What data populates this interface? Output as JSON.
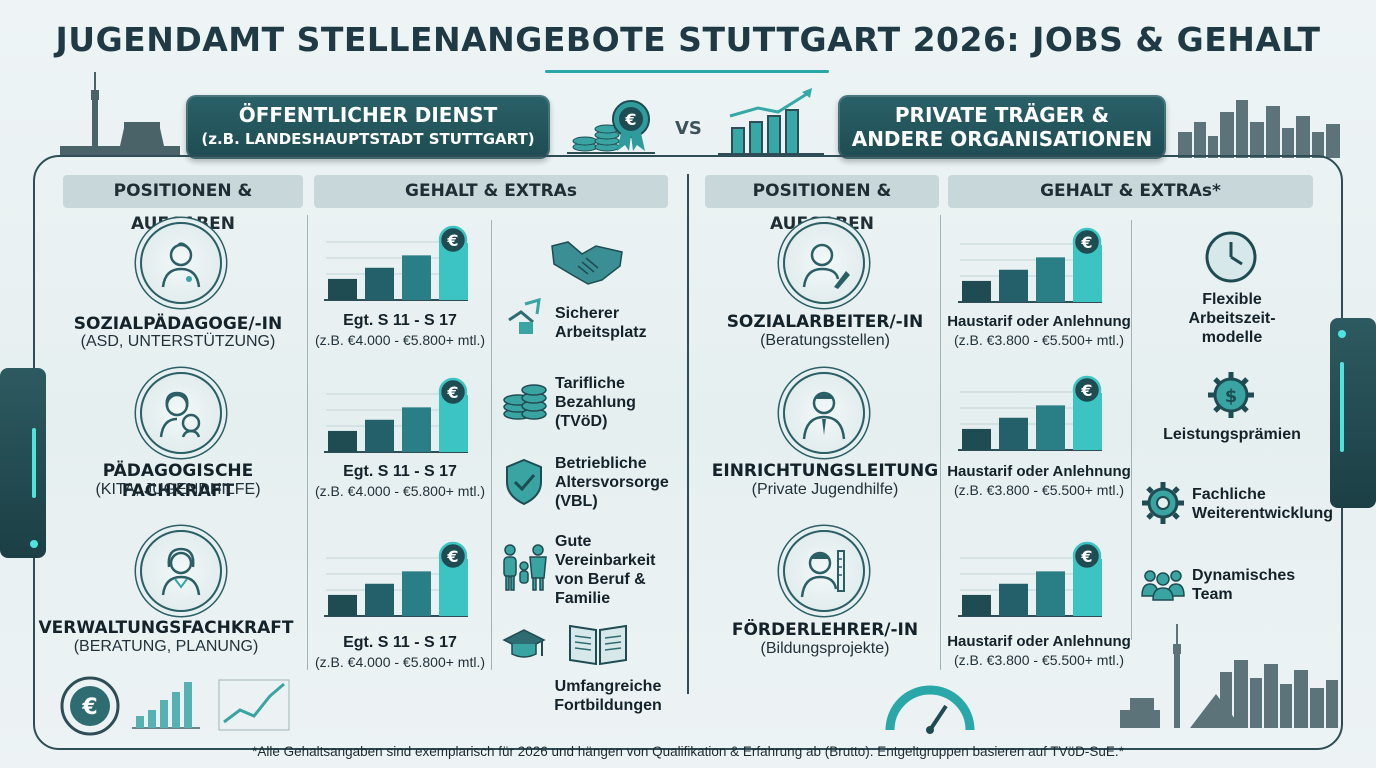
{
  "title": "JUGENDAMT STELLENANGEBOTE STUTTGART 2026: JOBS & GEHALT",
  "vs_label": "VS",
  "public": {
    "banner_line1": "ÖFFENTLICHER DIENST",
    "banner_line2": "(z.B. LANDESHAUPTSTADT STUTTGART)",
    "positions_header": "POSITIONEN & AUFGABEN",
    "salary_header": "GEHALT & EXTRAs",
    "roles": [
      {
        "title": "SOZIALPÄDAGOGE/-IN",
        "subtitle": "(ASD, UNTERSTÜTZUNG)",
        "icon": "social-worker-icon"
      },
      {
        "title": "PÄDAGOGISCHE FACHKRAFT",
        "subtitle": "(KITA, JUGENDHILFE)",
        "icon": "educator-child-icon"
      },
      {
        "title": "VERWALTUNGSFACHKRAFT",
        "subtitle": "(BERATUNG, PLANUNG)",
        "icon": "admin-woman-icon"
      }
    ],
    "salaries": [
      {
        "title": "Egt. S 11 - S 17",
        "subtitle": "(z.B. €4.000 - €5.800+ mtl.)"
      },
      {
        "title": "Egt. S 11 - S 17",
        "subtitle": "(z.B. €4.000 - €5.800+ mtl.)"
      },
      {
        "title": "Egt. S 11 - S 17",
        "subtitle": "(z.B. €4.000 - €5.800+ mtl.)"
      }
    ],
    "benefits": [
      {
        "lines": [
          "Sicherer",
          "Arbeitsplatz"
        ],
        "icon": "handshake-icon"
      },
      {
        "lines": [
          "Tarifliche",
          "Bezahlung",
          "(TVöD)"
        ],
        "icon": "coins-icon"
      },
      {
        "lines": [
          "Betriebliche",
          "Altersvorsorge",
          "(VBL)"
        ],
        "icon": "shield-check-icon"
      },
      {
        "lines": [
          "Gute",
          "Vereinbarkeit",
          "von Beruf &",
          "Familie"
        ],
        "icon": "family-icon"
      },
      {
        "lines": [
          "Umfangreiche",
          "Fortbildungen"
        ],
        "icon": "book-icon"
      }
    ]
  },
  "private": {
    "banner_line1": "PRIVATE TRÄGER &",
    "banner_line2": "ANDERE ORGANISATIONEN",
    "positions_header": "POSITIONEN & AUFGABEN",
    "salary_header": "GEHALT & EXTRAs*",
    "roles": [
      {
        "title": "SOZIALARBEITER/-IN",
        "subtitle": "(Beratungsstellen)",
        "icon": "social-worker-pen-icon"
      },
      {
        "title": "EINRICHTUNGSLEITUNG",
        "subtitle": "(Private Jugendhilfe)",
        "icon": "manager-icon"
      },
      {
        "title": "FÖRDERLEHRER/-IN",
        "subtitle": "(Bildungsprojekte)",
        "icon": "teacher-icon"
      }
    ],
    "salaries": [
      {
        "title": "Haustarif oder Anlehnung",
        "subtitle": "(z.B. €3.800 - €5.500+ mtl.)"
      },
      {
        "title": "Haustarif oder Anlehnung",
        "subtitle": "(z.B. €3.800 - €5.500+ mtl.)"
      },
      {
        "title": "Haustarif oder Anlehnung",
        "subtitle": "(z.B. €3.800 - €5.500+ mtl.)"
      }
    ],
    "benefits": [
      {
        "lines": [
          "Flexible",
          "Arbeitszeit-",
          "modelle"
        ],
        "icon": "clock-icon"
      },
      {
        "lines": [
          "Leistungsprämien"
        ],
        "icon": "dollar-gear-icon"
      },
      {
        "lines": [
          "Fachliche",
          "Weiterentwicklung"
        ],
        "icon": "gear-icon"
      },
      {
        "lines": [
          "Dynamisches",
          "Team"
        ],
        "icon": "team-icon"
      }
    ]
  },
  "currency_symbol": "€",
  "footnote": "*Alle Gehaltsangaben sind exemplarisch für 2026 und hängen von Qualifikation & Erfahrung ab (Brutto). Entgeltgruppen basieren auf TVöD-SuE.*",
  "colors": {
    "accent": "#2aa7a9",
    "dark_teal": "#1e4c52",
    "frame": "#2e4d56",
    "header_bg": "#c7d7da"
  }
}
